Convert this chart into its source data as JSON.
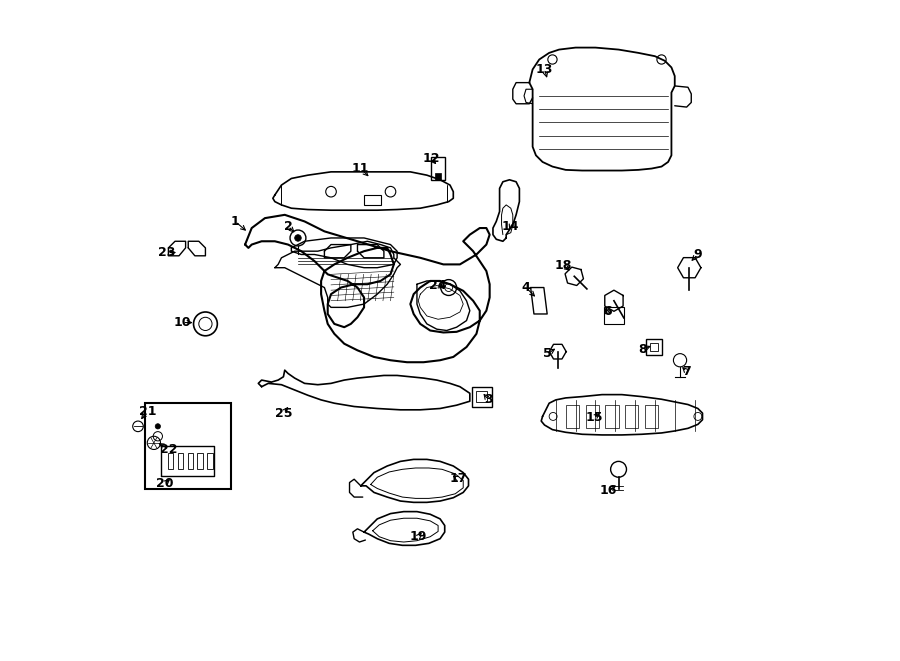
{
  "title": "",
  "background_color": "#ffffff",
  "line_color": "#000000",
  "line_width": 1.2,
  "figure_width": 9.0,
  "figure_height": 6.61,
  "dpi": 100
}
